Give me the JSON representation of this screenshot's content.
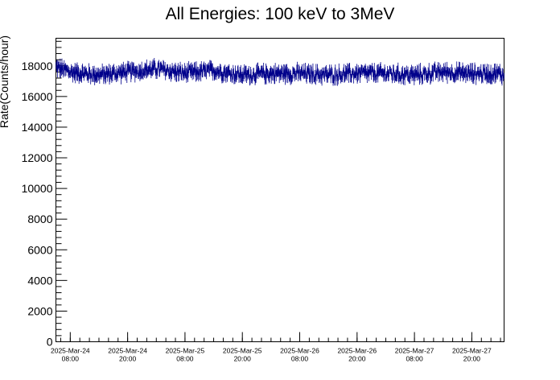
{
  "chart_data": {
    "type": "line",
    "title": "All Energies:  100 keV to 3MeV",
    "xlabel": "",
    "ylabel": "Rate(Counts/hour)",
    "ylim": [
      0,
      19800
    ],
    "xlim": [
      "2025-03-24 05:00",
      "2025-03-28 02:45"
    ],
    "grid": false,
    "y_ticks": [
      0,
      2000,
      4000,
      6000,
      8000,
      10000,
      12000,
      14000,
      16000,
      18000
    ],
    "x_ticks": [
      {
        "date": "2025-Mar-24",
        "time": "08:00"
      },
      {
        "date": "2025-Mar-24",
        "time": "20:00"
      },
      {
        "date": "2025-Mar-25",
        "time": "08:00"
      },
      {
        "date": "2025-Mar-25",
        "time": "20:00"
      },
      {
        "date": "2025-Mar-26",
        "time": "08:00"
      },
      {
        "date": "2025-Mar-26",
        "time": "20:00"
      },
      {
        "date": "2025-Mar-27",
        "time": "08:00"
      },
      {
        "date": "2025-Mar-27",
        "time": "20:00"
      }
    ],
    "series": [
      {
        "color": "#00008b",
        "x": [
          "2025-03-24 05:00",
          "2025-03-24 08:00",
          "2025-03-24 14:00",
          "2025-03-24 20:00",
          "2025-03-25 02:00",
          "2025-03-25 08:00",
          "2025-03-25 14:00",
          "2025-03-25 20:00",
          "2025-03-26 02:00",
          "2025-03-26 08:00",
          "2025-03-26 14:00",
          "2025-03-26 20:00",
          "2025-03-27 02:00",
          "2025-03-27 08:00",
          "2025-03-27 14:00",
          "2025-03-27 20:00",
          "2025-03-28 02:00",
          "2025-03-28 02:45"
        ],
        "values": [
          17900,
          17600,
          17400,
          17600,
          17800,
          17500,
          17700,
          17400,
          17500,
          17500,
          17400,
          17500,
          17500,
          17400,
          17600,
          17500,
          17500,
          17300
        ]
      }
    ]
  }
}
